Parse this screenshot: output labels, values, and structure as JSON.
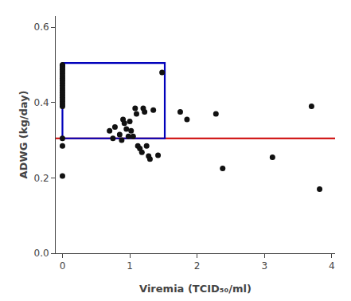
{
  "chart_data": {
    "type": "scatter",
    "xlabel": "Viremia (TCID₅₀/ml)",
    "ylabel": "ADWG (kg/day)",
    "xlim": [
      -0.1,
      4.05
    ],
    "ylim": [
      0.0,
      0.63
    ],
    "xticks": [
      0,
      1,
      2,
      3,
      4
    ],
    "yticks": [
      {
        "value": 0.0,
        "label": "0.0"
      },
      0.2,
      0.4,
      0.6
    ],
    "grid": false,
    "color": "#111111",
    "marker": "circle",
    "x": [
      0,
      0,
      0,
      0,
      0,
      0,
      0,
      0,
      0,
      0,
      0,
      0,
      0,
      0,
      0,
      0,
      0,
      0,
      0,
      0,
      0,
      0,
      0,
      0.7,
      0.75,
      0.78,
      0.85,
      0.88,
      0.9,
      0.92,
      0.95,
      0.98,
      1.0,
      1.02,
      1.05,
      1.08,
      1.1,
      1.12,
      1.15,
      1.18,
      1.2,
      1.22,
      1.25,
      1.28,
      1.3,
      1.35,
      1.42,
      1.48,
      1.75,
      1.85,
      2.28,
      2.38,
      3.12,
      3.7,
      3.82
    ],
    "values": [
      0.5,
      0.498,
      0.493,
      0.488,
      0.482,
      0.476,
      0.47,
      0.464,
      0.458,
      0.452,
      0.445,
      0.438,
      0.432,
      0.426,
      0.42,
      0.414,
      0.408,
      0.402,
      0.396,
      0.39,
      0.305,
      0.285,
      0.205,
      0.325,
      0.305,
      0.335,
      0.315,
      0.3,
      0.355,
      0.345,
      0.33,
      0.31,
      0.35,
      0.325,
      0.31,
      0.385,
      0.37,
      0.285,
      0.278,
      0.268,
      0.385,
      0.375,
      0.285,
      0.258,
      0.25,
      0.38,
      0.26,
      0.48,
      0.375,
      0.355,
      0.37,
      0.225,
      0.255,
      0.39,
      0.17
    ],
    "hline": {
      "y": 0.305,
      "color": "#cc0000"
    },
    "rectangle": {
      "x0": 0.0,
      "y0": 0.305,
      "width": 1.52,
      "height": 0.2,
      "color": "#0000bb"
    }
  }
}
